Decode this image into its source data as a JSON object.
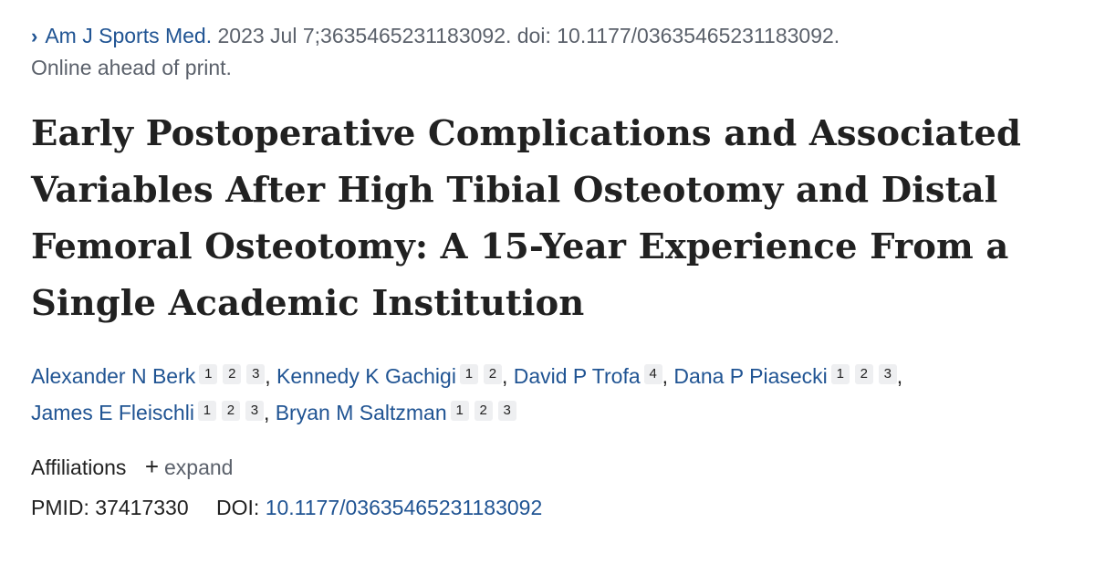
{
  "citation": {
    "journal": "Am J Sports Med.",
    "details": "2023 Jul 7;3635465231183092. doi: 10.1177/03635465231183092.",
    "status": "Online ahead of print."
  },
  "title": "Early Postoperative Complications and Associated Variables After High Tibial Osteotomy and Distal Femoral Osteotomy: A 15-Year Experience From a Single Academic Institution",
  "authors": [
    {
      "name": "Alexander N Berk",
      "affiliations": [
        "1",
        "2",
        "3"
      ]
    },
    {
      "name": "Kennedy K Gachigi",
      "affiliations": [
        "1",
        "2"
      ]
    },
    {
      "name": "David P Trofa",
      "affiliations": [
        "4"
      ]
    },
    {
      "name": "Dana P Piasecki",
      "affiliations": [
        "1",
        "2",
        "3"
      ]
    },
    {
      "name": "James E Fleischli",
      "affiliations": [
        "1",
        "2",
        "3"
      ]
    },
    {
      "name": "Bryan M Saltzman",
      "affiliations": [
        "1",
        "2",
        "3"
      ]
    }
  ],
  "affiliations": {
    "label": "Affiliations",
    "expand_label": "expand",
    "expand_icon": "plus-icon"
  },
  "identifiers": {
    "pmid_label": "PMID:",
    "pmid": "37417330",
    "doi_label": "DOI:",
    "doi": "10.1177/03635465231183092"
  },
  "colors": {
    "link": "#205493",
    "muted": "#5b616b",
    "text": "#212121",
    "badge_bg": "#eeeff1"
  }
}
